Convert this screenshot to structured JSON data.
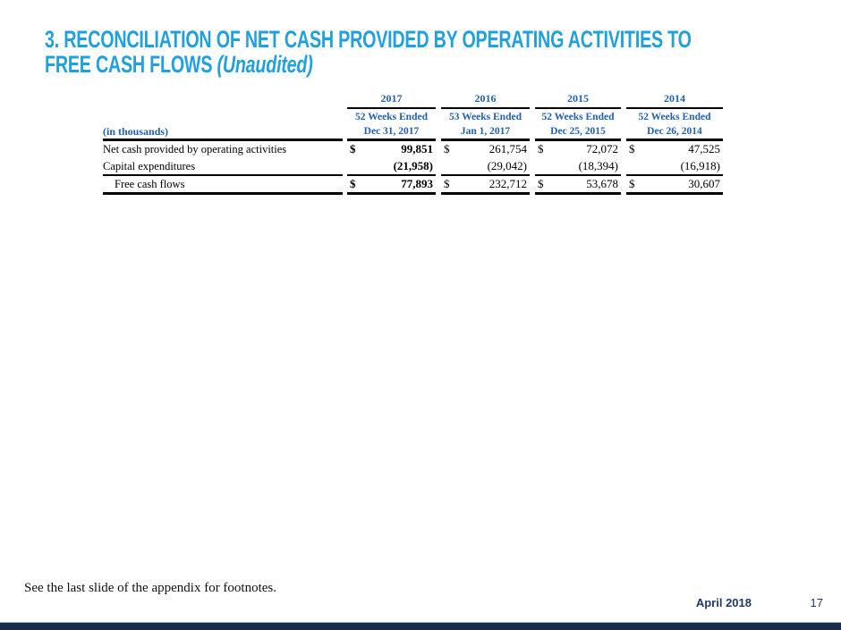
{
  "slide": {
    "title_line1": "3. RECONCILIATION OF NET CASH PROVIDED BY OPERATING ACTIVITIES TO",
    "title_line2_main": "FREE CASH FLOWS ",
    "title_line2_italic": "(Unaudited)",
    "footnote": "See the last slide of the appendix for footnotes.",
    "footer_date": "April 2018",
    "page_number": "17"
  },
  "colors": {
    "title_accent": "#20A1DC",
    "table_header_blue": "#2161AE",
    "footer_navy": "#203A66",
    "bottom_bar_navy": "#1B2B4A"
  },
  "table": {
    "corner_label": "(in thousands)",
    "currency_symbol": "$",
    "columns": [
      {
        "year": "2017",
        "weeks": "52 Weeks Ended",
        "date": "Dec 31, 2017"
      },
      {
        "year": "2016",
        "weeks": "53 Weeks Ended",
        "date": "Jan 1, 2017"
      },
      {
        "year": "2015",
        "weeks": "52 Weeks Ended",
        "date": "Dec 25, 2015"
      },
      {
        "year": "2014",
        "weeks": "52 Weeks Ended",
        "date": "Dec 26, 2014"
      }
    ],
    "rows": [
      {
        "label": "Net cash provided by operating activities",
        "values": [
          "99,851",
          "261,754",
          "72,072",
          "47,525"
        ]
      },
      {
        "label": "Capital expenditures",
        "values": [
          "(21,958)",
          "(29,042)",
          "(18,394)",
          "(16,918)"
        ]
      },
      {
        "label": "Free cash flows",
        "values": [
          "77,893",
          "232,712",
          "53,678",
          "30,607"
        ]
      }
    ]
  }
}
